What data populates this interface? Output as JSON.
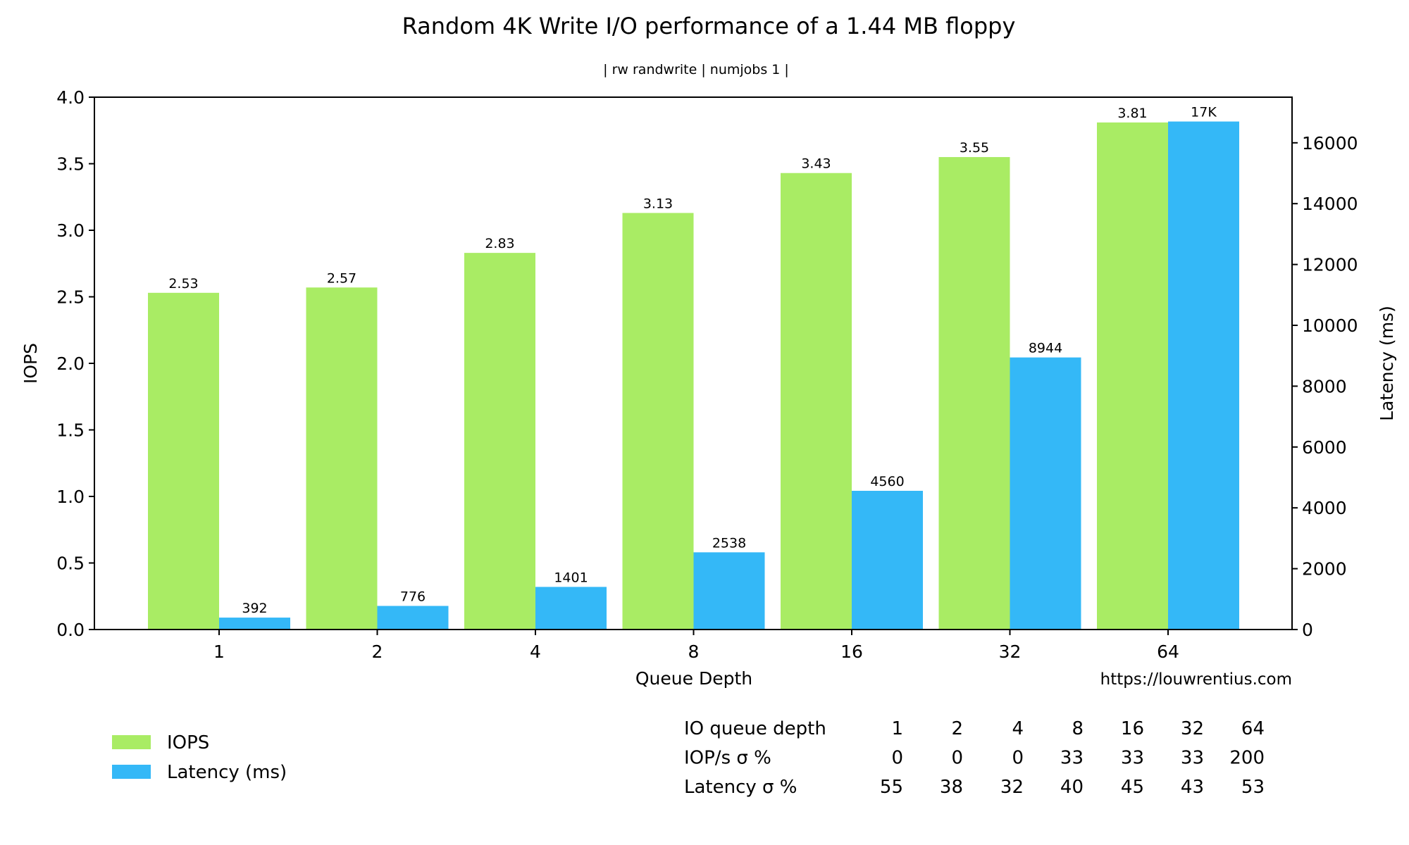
{
  "chart_data": {
    "type": "bar",
    "title": "Random 4K Write I/O performance of a 1.44 MB floppy",
    "subtitle": "| rw randwrite | numjobs 1 |",
    "xlabel": "Queue Depth",
    "ylabel": "IOPS",
    "y2label": "Latency (ms)",
    "categories": [
      "1",
      "2",
      "4",
      "8",
      "16",
      "32",
      "64"
    ],
    "ylim": [
      0,
      4.0
    ],
    "y2lim": [
      0,
      17500
    ],
    "yticks": [
      "0.0",
      "0.5",
      "1.0",
      "1.5",
      "2.0",
      "2.5",
      "3.0",
      "3.5",
      "4.0"
    ],
    "y2ticks": [
      "0",
      "2000",
      "4000",
      "6000",
      "8000",
      "10000",
      "12000",
      "14000",
      "16000"
    ],
    "grid": false,
    "legend_position": "bottom-left",
    "series": [
      {
        "name": "IOPS",
        "axis": "left",
        "color": "#a9ec64",
        "values": [
          2.53,
          2.57,
          2.83,
          3.13,
          3.43,
          3.55,
          3.81
        ],
        "labels": [
          "2.53",
          "2.57",
          "2.83",
          "3.13",
          "3.43",
          "3.55",
          "3.81"
        ]
      },
      {
        "name": "Latency (ms)",
        "axis": "right",
        "color": "#34b8f7",
        "values": [
          392,
          776,
          1401,
          2538,
          4560,
          8944,
          16700
        ],
        "labels": [
          "392",
          "776",
          "1401",
          "2538",
          "4560",
          "8944",
          "17K"
        ]
      }
    ],
    "source_url": "https://louwrentius.com",
    "stats_table": {
      "rows": [
        {
          "label": "IO queue depth",
          "values": [
            "1",
            "2",
            "4",
            "8",
            "16",
            "32",
            "64"
          ]
        },
        {
          "label": "IOP/s σ %",
          "values": [
            "0",
            "0",
            "0",
            "33",
            "33",
            "33",
            "200"
          ]
        },
        {
          "label": "Latency σ %",
          "values": [
            "55",
            "38",
            "32",
            "40",
            "45",
            "43",
            "53"
          ]
        }
      ]
    }
  }
}
